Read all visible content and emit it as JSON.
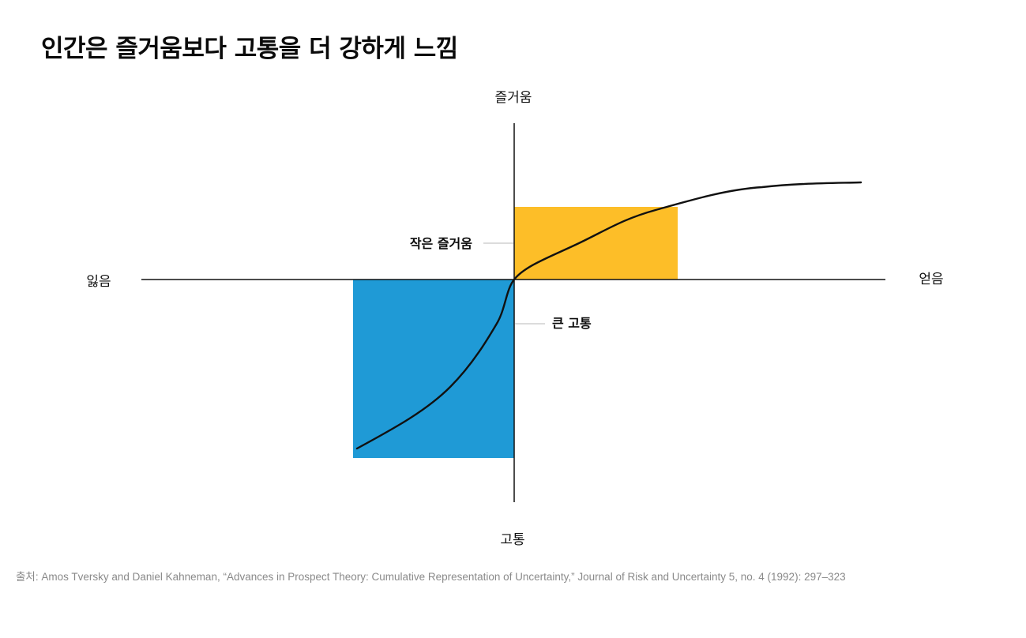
{
  "title": "인간은 즐거움보다 고통을 더 강하게 느낌",
  "axes": {
    "top_label": "즐거움",
    "bottom_label": "고통",
    "left_label": "잃음",
    "right_label": "얻음"
  },
  "callouts": {
    "small_pleasure": "작은 즐거움",
    "big_pain": "큰 고통"
  },
  "colors": {
    "pleasure_box": "#FDBE28",
    "pain_box": "#1F9AD6",
    "curve": "#111111",
    "axis": "#111111",
    "leader_line": "#c8c8c8",
    "source_text": "#8a8a8a"
  },
  "source": "출처: Amos Tversky and Daniel Kahneman, “Advances in Prospect Theory: Cumulative Representation of Uncertainty,” Journal of Risk and Uncertainty 5, no. 4 (1992): 297–323"
}
